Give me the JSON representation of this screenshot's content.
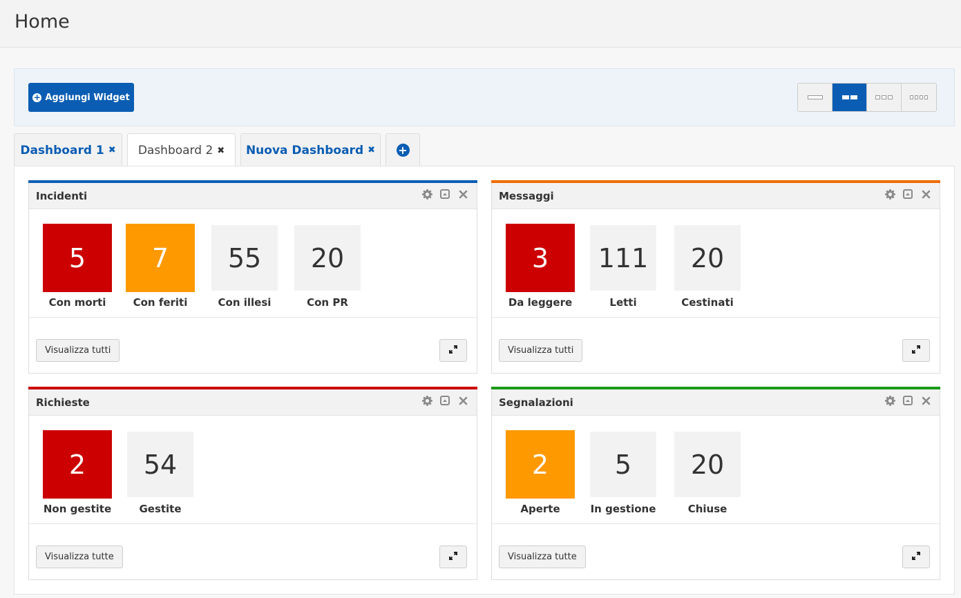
{
  "page": {
    "title": "Home"
  },
  "toolbar": {
    "add_widget_label": "Aggiungi Widget",
    "layouts": [
      {
        "name": "layout-1-column",
        "cols": 1,
        "active": false
      },
      {
        "name": "layout-2-columns",
        "cols": 2,
        "active": true
      },
      {
        "name": "layout-3-columns",
        "cols": 3,
        "active": false
      },
      {
        "name": "layout-4-columns",
        "cols": 4,
        "active": false
      }
    ]
  },
  "tabs": [
    {
      "label": "Dashboard 1",
      "active": false
    },
    {
      "label": "Dashboard 2",
      "active": true
    },
    {
      "label": "Nuova Dashboard",
      "active": false
    }
  ],
  "colors": {
    "primary": "#0a5db3",
    "red": "#cc0000",
    "orange": "#ff9900",
    "green": "#1a9a1a",
    "bar_orange": "#ef6c00"
  },
  "widgets": [
    {
      "title": "Incidenti",
      "bar_color": "#0a5db3",
      "stats": [
        {
          "value": "5",
          "label": "Con morti",
          "style": "red"
        },
        {
          "value": "7",
          "label": "Con feriti",
          "style": "orange"
        },
        {
          "value": "55",
          "label": "Con illesi",
          "style": "gray"
        },
        {
          "value": "20",
          "label": "Con PR",
          "style": "gray"
        }
      ],
      "footer_button": "Visualizza tutti"
    },
    {
      "title": "Messaggi",
      "bar_color": "#ef6c00",
      "stats": [
        {
          "value": "3",
          "label": "Da leggere",
          "style": "red"
        },
        {
          "value": "111",
          "label": "Letti",
          "style": "gray"
        },
        {
          "value": "20",
          "label": "Cestinati",
          "style": "gray"
        }
      ],
      "footer_button": "Visualizza tutti"
    },
    {
      "title": "Richieste",
      "bar_color": "#cc0000",
      "stats": [
        {
          "value": "2",
          "label": "Non gestite",
          "style": "red"
        },
        {
          "value": "54",
          "label": "Gestite",
          "style": "gray"
        }
      ],
      "footer_button": "Visualizza tutte"
    },
    {
      "title": "Segnalazioni",
      "bar_color": "#1a9a1a",
      "stats": [
        {
          "value": "2",
          "label": "Aperte",
          "style": "orange"
        },
        {
          "value": "5",
          "label": "In gestione",
          "style": "gray"
        },
        {
          "value": "20",
          "label": "Chiuse",
          "style": "gray"
        }
      ],
      "footer_button": "Visualizza tutte"
    }
  ]
}
